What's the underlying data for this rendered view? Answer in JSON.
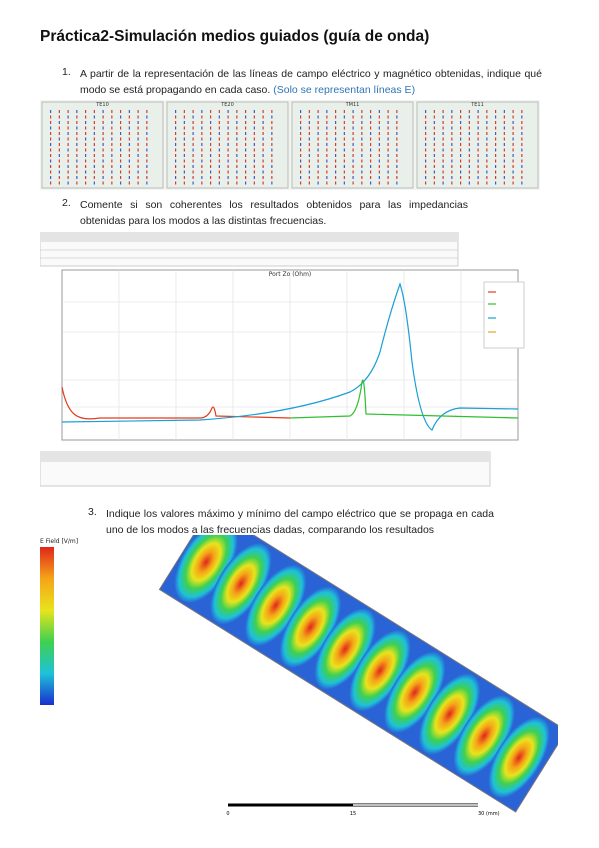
{
  "header": {
    "title": "Práctica2-Simulación medios guiados (guía de onda)"
  },
  "items": [
    {
      "number": "1.",
      "text": "A partir de la representación de las líneas de campo eléctrico y magnético obtenidas, indique qué modo se está propagando en cada caso.",
      "note": "(Solo se representan líneas E)"
    },
    {
      "number": "2.",
      "text": "Comente si son coherentes los resultados obtenidos para las impedancias obtenidas para los modos a las distintas frecuencias."
    },
    {
      "number": "3.",
      "text": "Indique los valores máximo y mínimo del campo eléctrico que se propaga en cada uno de los modos a las frecuencias dadas, comparando los resultados"
    }
  ],
  "mode_images": [
    "TE10",
    "TE20",
    "TM11",
    "TE11"
  ],
  "impedance_plot": {
    "title": "Port Zo (Ohm)"
  },
  "field_image": {
    "legend_title": "E Field [V/m]",
    "scale": [
      "0",
      "15",
      "30 (mm)"
    ]
  }
}
